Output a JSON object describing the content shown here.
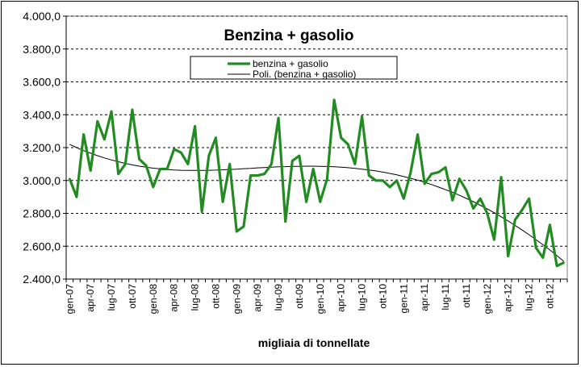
{
  "chart_data": {
    "type": "line",
    "title": "Benzina + gasolio",
    "xlabel": "migliaia di tonnellate",
    "ylabel": "",
    "ylim": [
      2400,
      4000
    ],
    "yticks": [
      2400,
      2600,
      2800,
      3000,
      3200,
      3400,
      3600,
      3800,
      4000
    ],
    "ytick_labels": [
      "2.400,0",
      "2.600,0",
      "2.800,0",
      "3.000,0",
      "3.200,0",
      "3.400,0",
      "3.600,0",
      "3.800,0",
      "4.000,0"
    ],
    "grid": "horizontal dashed",
    "legend_position": "top-center",
    "x_tick_labels": [
      "gen-07",
      "apr-07",
      "lug-07",
      "ott-07",
      "gen-08",
      "apr-08",
      "lug-08",
      "ott-08",
      "gen-09",
      "apr-09",
      "lug-09",
      "ott-09",
      "gen-10",
      "apr-10",
      "lug-10",
      "ott-10",
      "gen-11",
      "apr-11",
      "lug-11",
      "ott-11",
      "gen-12",
      "apr-12",
      "lug-12",
      "ott-12"
    ],
    "series": [
      {
        "name": "benzina + gasolio",
        "color": "#228B22",
        "values": [
          3010,
          2900,
          3280,
          3060,
          3360,
          3250,
          3420,
          3040,
          3100,
          3430,
          3130,
          3090,
          2960,
          3070,
          3070,
          3190,
          3170,
          3100,
          3330,
          2810,
          3150,
          3260,
          2870,
          3100,
          2690,
          2720,
          3030,
          3030,
          3040,
          3100,
          3380,
          2750,
          3120,
          3150,
          2870,
          3070,
          2870,
          3010,
          3490,
          3260,
          3220,
          3100,
          3390,
          3030,
          3000,
          3000,
          2960,
          3000,
          2890,
          3050,
          3280,
          2980,
          3040,
          3050,
          3080,
          2880,
          3010,
          2940,
          2830,
          2890,
          2800,
          2640,
          3020,
          2540,
          2760,
          2820,
          2890,
          2590,
          2530,
          2730,
          2480,
          2500
        ]
      },
      {
        "name": "Poli. (benzina + gasolio)",
        "color": "#000000",
        "values": [
          3220,
          3200,
          3182,
          3166,
          3151,
          3137,
          3125,
          3114,
          3104,
          3095,
          3087,
          3081,
          3075,
          3071,
          3067,
          3064,
          3062,
          3061,
          3061,
          3061,
          3062,
          3063,
          3065,
          3067,
          3069,
          3072,
          3074,
          3077,
          3079,
          3081,
          3083,
          3084,
          3086,
          3086,
          3087,
          3087,
          3086,
          3085,
          3083,
          3081,
          3078,
          3074,
          3069,
          3064,
          3058,
          3051,
          3043,
          3034,
          3024,
          3013,
          3002,
          2989,
          2975,
          2960,
          2944,
          2928,
          2910,
          2891,
          2871,
          2849,
          2827,
          2804,
          2779,
          2754,
          2727,
          2699,
          2670,
          2640,
          2609,
          2577,
          2543,
          2508
        ]
      }
    ]
  }
}
